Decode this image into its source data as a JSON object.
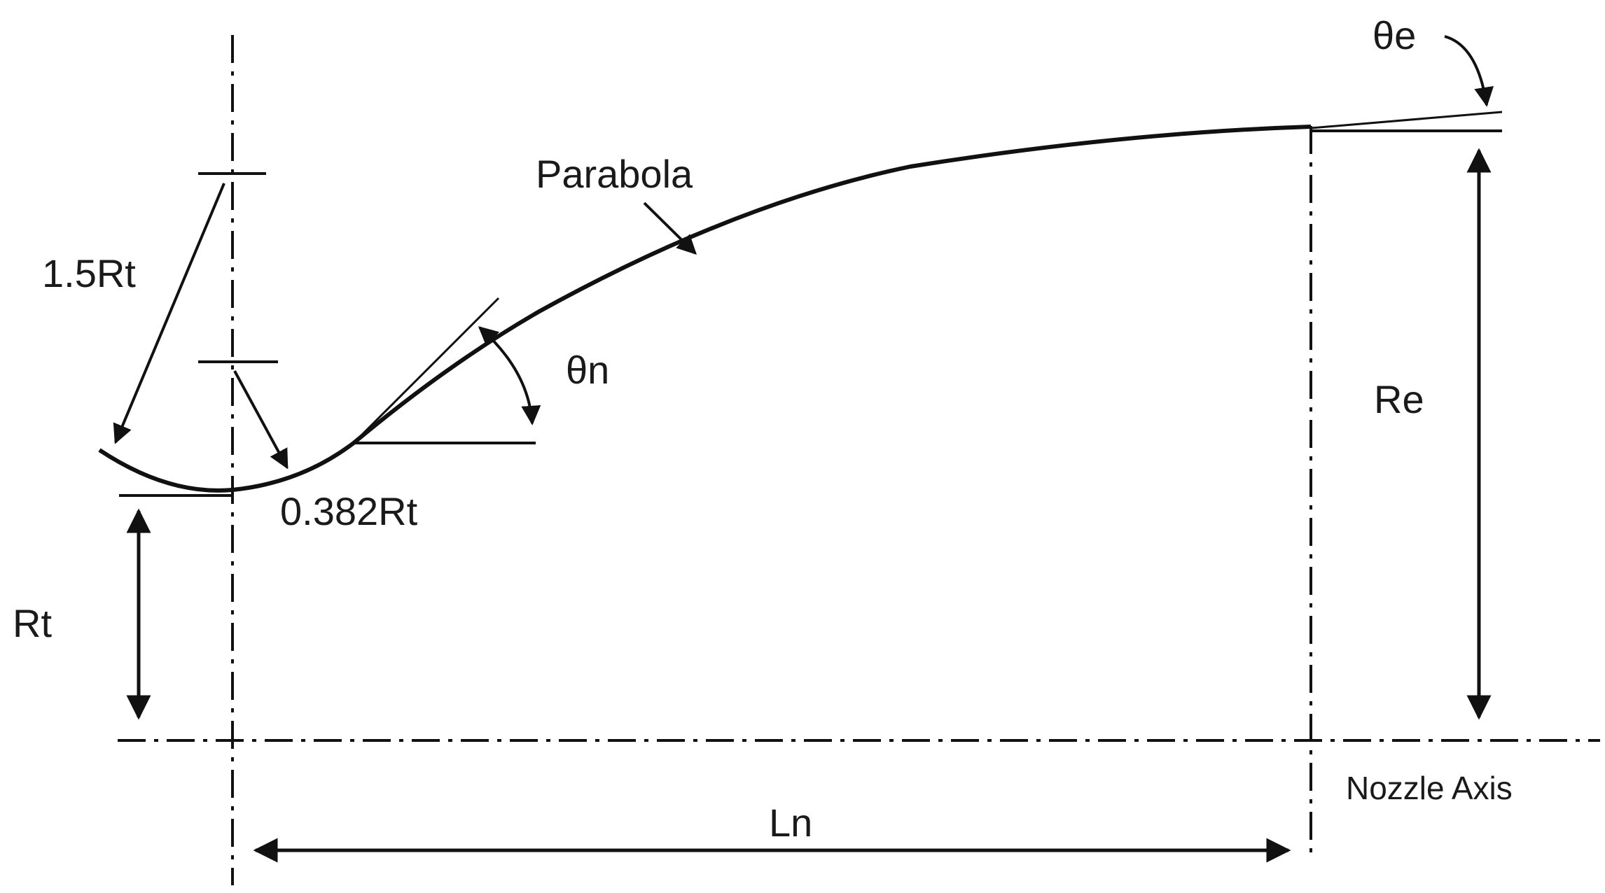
{
  "labels": {
    "parabola": "Parabola",
    "throat_arc_entrance": "1.5Rt",
    "throat_arc_exit": "0.382Rt",
    "initial_angle": "θn",
    "exit_angle": "θe",
    "throat_radius": "Rt",
    "exit_radius": "Re",
    "nozzle_length": "Ln",
    "axis": "Nozzle Axis"
  },
  "colors": {
    "ink": "#111111",
    "background": "#ffffff"
  }
}
